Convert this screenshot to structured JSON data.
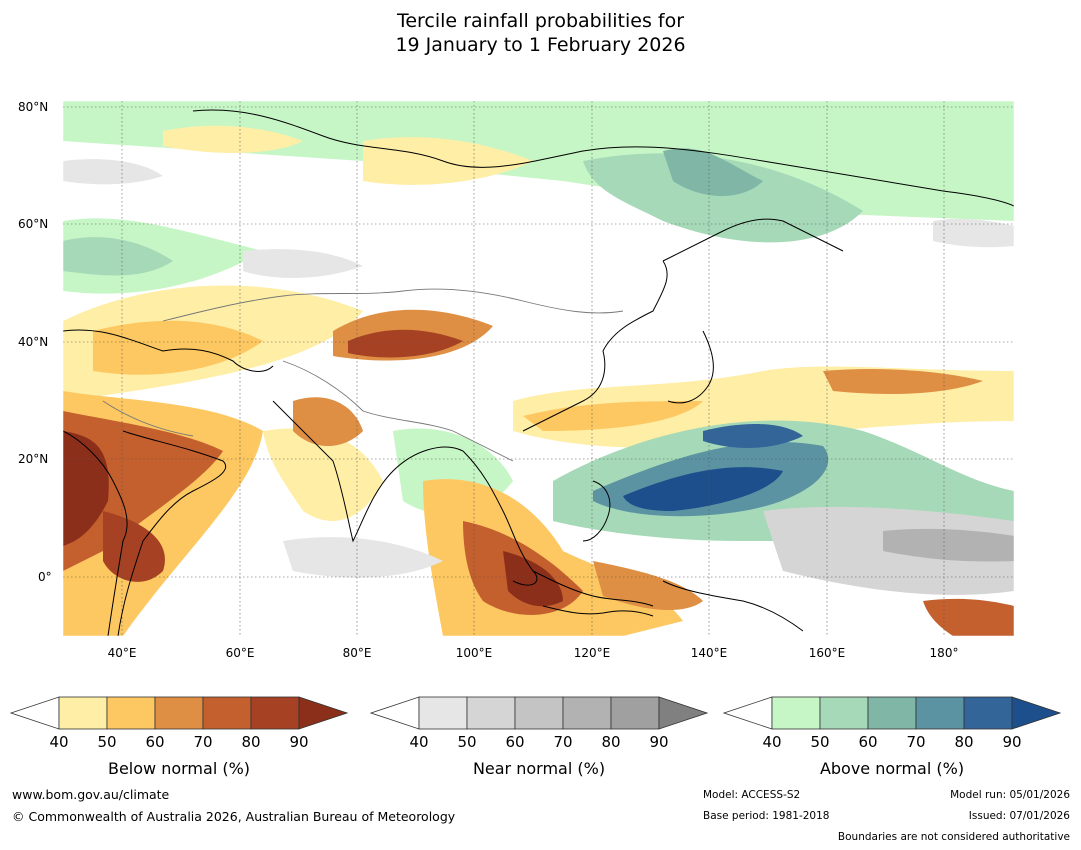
{
  "title": {
    "line1": "Tercile rainfall probabilities for",
    "line2": "19 January to 1 February 2026"
  },
  "map": {
    "lat_labels": [
      "80°N",
      "60°N",
      "40°N",
      "20°N",
      "0°"
    ],
    "lon_labels": [
      "40°E",
      "60°E",
      "80°E",
      "100°E",
      "120°E",
      "140°E",
      "160°E",
      "180°"
    ]
  },
  "legends": [
    {
      "title": "Below normal (%)",
      "ticks": [
        "40",
        "50",
        "60",
        "70",
        "80",
        "90"
      ],
      "colors": [
        "#ffeea6",
        "#fdc862",
        "#de8f44",
        "#c4602e",
        "#a64124",
        "#8c2f1a"
      ]
    },
    {
      "title": "Near normal (%)",
      "ticks": [
        "40",
        "50",
        "60",
        "70",
        "80",
        "90"
      ],
      "colors": [
        "#e6e6e6",
        "#d5d5d5",
        "#c4c4c4",
        "#b2b2b2",
        "#a0a0a0",
        "#808080"
      ]
    },
    {
      "title": "Above normal (%)",
      "ticks": [
        "40",
        "50",
        "60",
        "70",
        "80",
        "90"
      ],
      "colors": [
        "#c6f6c6",
        "#a6d9b8",
        "#7fb6a6",
        "#5c93a2",
        "#346599",
        "#1d4f8c"
      ]
    }
  ],
  "footer": {
    "website": "www.bom.gov.au/climate",
    "copyright": "© Commonwealth of Australia 2026, Australian Bureau of Meteorology",
    "model": "Model: ACCESS-S2",
    "base_period": "Base period: 1981-2018",
    "model_run": "Model run: 05/01/2026",
    "issued": "Issued: 07/01/2026",
    "disclaimer": "Boundaries are not considered authoritative"
  }
}
